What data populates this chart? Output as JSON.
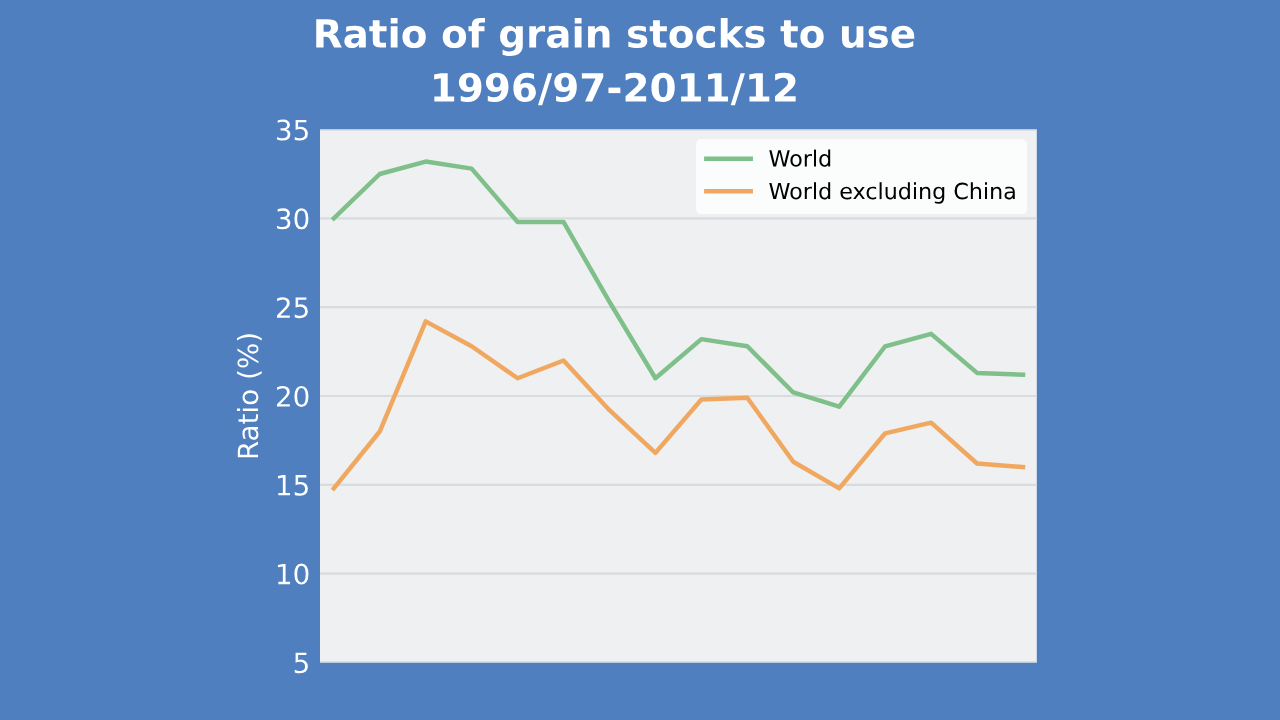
{
  "chart_data": {
    "type": "line",
    "title": "Ratio of grain stocks to use",
    "subtitle": "1996/97-2011/12",
    "ylabel": "Ratio (%)",
    "categories": [
      null,
      null,
      null,
      null,
      null,
      null,
      null,
      null,
      null,
      null,
      null,
      null,
      null,
      null,
      null,
      null
    ],
    "series": [
      {
        "name": "World",
        "color": "#7fbf8a",
        "values": [
          30,
          32.5,
          33.2,
          32.8,
          29.8,
          29.8,
          25.3,
          21,
          23.2,
          22.8,
          20.2,
          19.4,
          22.8,
          23.5,
          21.3,
          21.2
        ]
      },
      {
        "name": "World excluding China",
        "color": "#f0a860",
        "values": [
          14.8,
          18,
          24.2,
          22.8,
          21,
          22,
          19.2,
          16.8,
          19.8,
          19.9,
          16.3,
          14.8,
          17.9,
          18.5,
          16.2,
          16
        ]
      }
    ],
    "ylim": [
      5,
      35
    ],
    "yticks": [
      5,
      10,
      15,
      20,
      25,
      30,
      35
    ],
    "grid": "y",
    "legend": "top right",
    "tick_labels": "y",
    "line_style": "solid",
    "marker": "none"
  }
}
